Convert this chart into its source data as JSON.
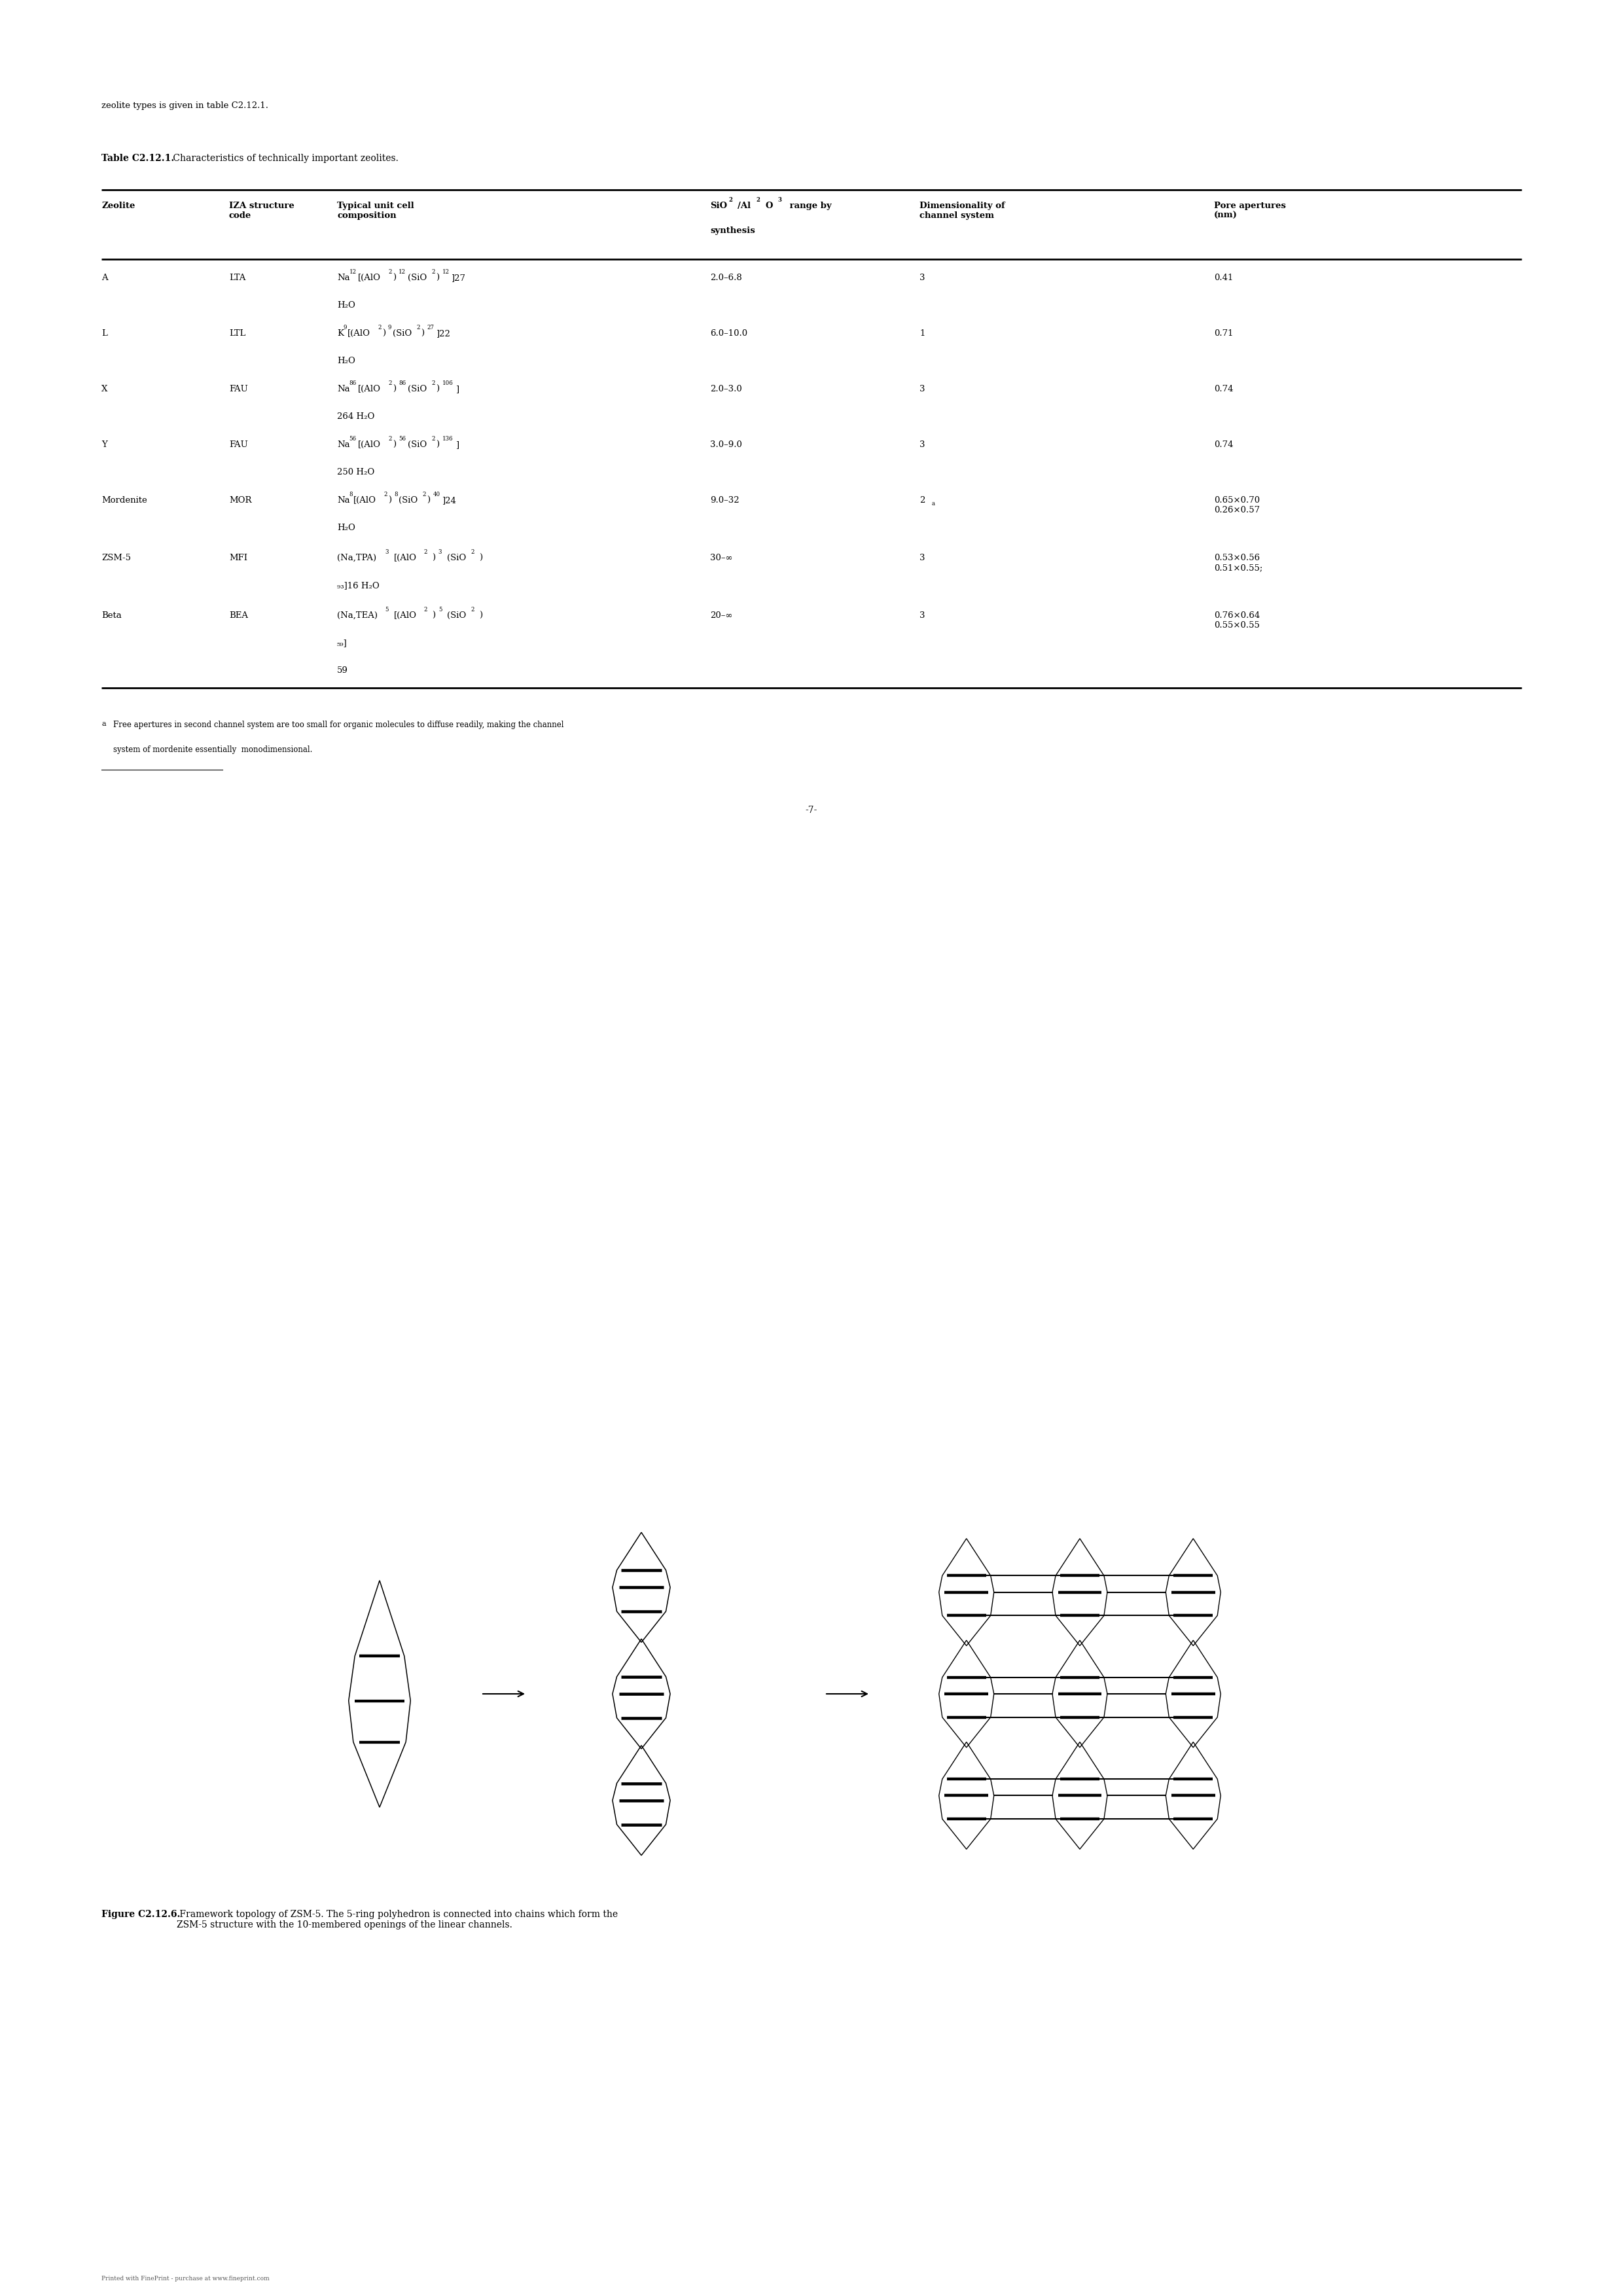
{
  "bg_color": "#ffffff",
  "page_width": 24.8,
  "page_height": 35.08,
  "top_text": "zeolite types is given in table C2.12.1.",
  "table_title_bold": "Table C2.12.1.",
  "table_title_normal": " Characteristics of technically important zeolites.",
  "rows": [
    {
      "zeolite": "A",
      "iza": "LTA",
      "composition_line1": "Na",
      "comp_sub1": "12",
      "composition_mid": "[(AlO",
      "comp_sub2": "2",
      "composition_mid2": ")",
      "comp_sub3": "12",
      "composition_mid3": "(SiO",
      "comp_sub4": "2",
      "composition_mid4": ")",
      "comp_sub5": "12",
      "composition_end": "]27",
      "composition_line2": "H₂O",
      "sio2": "2.0–6.8",
      "dim": "3",
      "pore": "0.41"
    },
    {
      "zeolite": "L",
      "iza": "LTL",
      "composition_line1": "K",
      "comp_sub1": "9",
      "composition_mid": "[(AlO",
      "comp_sub2": "2",
      "composition_mid2": ")",
      "comp_sub3": "9",
      "composition_mid3": "(SiO",
      "comp_sub4": "2",
      "composition_mid4": ")",
      "comp_sub5": "27",
      "composition_end": "]22",
      "composition_line2": "H₂O",
      "sio2": "6.0–10.0",
      "dim": "1",
      "pore": "0.71"
    },
    {
      "zeolite": "X",
      "iza": "FAU",
      "composition_line1": "Na",
      "comp_sub1": "86",
      "composition_mid": "[(AlO",
      "comp_sub2": "2",
      "composition_mid2": ")",
      "comp_sub3": "86",
      "composition_mid3": "(SiO",
      "comp_sub4": "2",
      "composition_mid4": ")",
      "comp_sub5": "106",
      "composition_end": "]",
      "composition_line2": "264 H₂O",
      "sio2": "2.0–3.0",
      "dim": "3",
      "pore": "0.74"
    },
    {
      "zeolite": "Y",
      "iza": "FAU",
      "composition_line1": "Na",
      "comp_sub1": "56",
      "composition_mid": "[(AlO",
      "comp_sub2": "2",
      "composition_mid2": ")",
      "comp_sub3": "56",
      "composition_mid3": "(SiO",
      "comp_sub4": "2",
      "composition_mid4": ")",
      "comp_sub5": "136",
      "composition_end": "]",
      "composition_line2": "250 H₂O",
      "sio2": "3.0–9.0",
      "dim": "3",
      "pore": "0.74"
    },
    {
      "zeolite": "Mordenite",
      "iza": "MOR",
      "composition_line1": "Na",
      "comp_sub1": "8",
      "composition_mid": "[(AlO",
      "comp_sub2": "2",
      "composition_mid2": ")",
      "comp_sub3": "8",
      "composition_mid3": "(SiO",
      "comp_sub4": "2",
      "composition_mid4": ")",
      "comp_sub5": "40",
      "composition_end": "]24",
      "composition_line2": "H₂O",
      "sio2": "9.0–32",
      "dim": "2",
      "dim_sup": "a",
      "pore": "0.65×0.70\n0.26×0.57"
    },
    {
      "zeolite": "ZSM-5",
      "iza": "MFI",
      "comp_special": "(Na,TPA)",
      "comp_special_sub": "3",
      "comp_special2": "[(AlO",
      "comp_special2_sub": "2",
      "comp_special3": ")",
      "comp_special3_sub": "3",
      "comp_special4": "(SiO",
      "comp_special4_sub": "2",
      "comp_special5": ")",
      "comp_special5_end": "",
      "composition_line2": "₉₃]16 H₂O",
      "sio2": "30–∞",
      "dim": "3",
      "pore": "0.53×0.56\n0.51×0.55;"
    },
    {
      "zeolite": "Beta",
      "iza": "BEA",
      "comp_special": "(Na,TEA)",
      "comp_special_sub": "5",
      "comp_special2": "[(AlO",
      "comp_special2_sub": "2",
      "comp_special3": ")",
      "comp_special3_sub": "5",
      "comp_special4": "(SiO",
      "comp_special4_sub": "2",
      "comp_special5": ")",
      "comp_special5_end": "",
      "composition_line2": "₅₉]",
      "composition_line3": "59",
      "sio2": "20–∞",
      "dim": "3",
      "pore": "0.76×0.64\n0.55×0.55"
    }
  ],
  "footnote_super": "a",
  "footnote_text": " Free apertures in second channel system are too small for organic molecules to diffuse readily, making the channel\nsystem of mordenite essentially  monodimensional.",
  "page_number": "-7-",
  "figure_caption_bold": "Figure C2.12.6.",
  "figure_caption_normal": " Framework topology of ZSM-5. The 5-ring polyhedron is connected into chains which form the\nZSM-5 structure with the 10-membered openings of the linear channels.",
  "footer_text": "Printed with FinePrint - purchase at www.fineprint.com"
}
